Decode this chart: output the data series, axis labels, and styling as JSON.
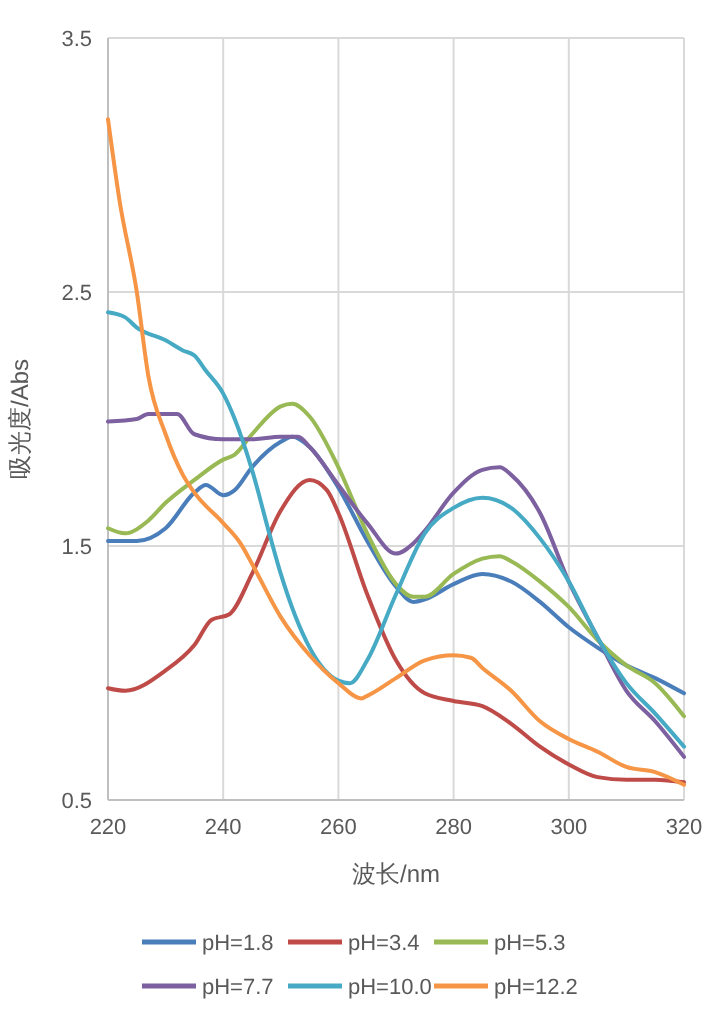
{
  "chart_data": {
    "type": "line",
    "xlabel": "波长/nm",
    "ylabel": "吸光度/Abs",
    "xlim": [
      220,
      320
    ],
    "xticks": [
      220,
      240,
      260,
      280,
      300,
      320
    ],
    "ylim": [
      0.5,
      3.5
    ],
    "yticks": [
      0.5,
      1.5,
      2.5,
      3.5
    ],
    "grid": true,
    "legend": "bottom",
    "marker": "none",
    "line_style": "solid",
    "series": [
      {
        "name": "pH=1.8",
        "color": "#4a7ebb",
        "x": [
          220,
          225,
          230,
          235,
          237,
          240,
          242,
          245,
          250,
          252,
          255,
          260,
          265,
          270,
          273,
          275,
          280,
          285,
          290,
          295,
          300,
          305,
          310,
          315,
          320
        ],
        "values": [
          1.52,
          1.52,
          1.57,
          1.71,
          1.74,
          1.7,
          1.72,
          1.81,
          1.91,
          1.93,
          1.89,
          1.73,
          1.52,
          1.34,
          1.28,
          1.29,
          1.35,
          1.39,
          1.36,
          1.28,
          1.18,
          1.1,
          1.03,
          0.98,
          0.92
        ]
      },
      {
        "name": "pH=3.4",
        "color": "#be4b48",
        "x": [
          220,
          223,
          230,
          235,
          238,
          241,
          245,
          250,
          255,
          258,
          260,
          265,
          270,
          275,
          280,
          285,
          290,
          295,
          300,
          305,
          310,
          315,
          320
        ],
        "values": [
          0.94,
          0.93,
          1.01,
          1.11,
          1.21,
          1.23,
          1.39,
          1.64,
          1.76,
          1.72,
          1.63,
          1.31,
          1.05,
          0.92,
          0.89,
          0.87,
          0.8,
          0.71,
          0.64,
          0.59,
          0.58,
          0.58,
          0.57
        ]
      },
      {
        "name": "pH=5.3",
        "color": "#98b954",
        "x": [
          220,
          223,
          227,
          230,
          235,
          240,
          242,
          245,
          250,
          252,
          255,
          260,
          265,
          270,
          273,
          275,
          280,
          285,
          288,
          290,
          295,
          300,
          305,
          310,
          315,
          320
        ],
        "values": [
          1.57,
          1.55,
          1.6,
          1.67,
          1.76,
          1.84,
          1.86,
          1.94,
          2.05,
          2.06,
          2.01,
          1.81,
          1.55,
          1.35,
          1.3,
          1.3,
          1.39,
          1.45,
          1.46,
          1.44,
          1.36,
          1.26,
          1.13,
          1.03,
          0.96,
          0.83
        ]
      },
      {
        "name": "pH=7.7",
        "color": "#7d60a0",
        "x": [
          220,
          225,
          227,
          232,
          235,
          240,
          245,
          250,
          253,
          255,
          260,
          265,
          270,
          273,
          275,
          280,
          285,
          288,
          290,
          295,
          300,
          305,
          310,
          315,
          320
        ],
        "values": [
          1.99,
          2.0,
          2.02,
          2.02,
          1.94,
          1.92,
          1.92,
          1.93,
          1.93,
          1.89,
          1.74,
          1.59,
          1.47,
          1.51,
          1.56,
          1.71,
          1.8,
          1.81,
          1.78,
          1.63,
          1.36,
          1.14,
          0.93,
          0.81,
          0.67
        ]
      },
      {
        "name": "pH=10.0",
        "color": "#46aac5",
        "x": [
          220,
          223,
          225,
          230,
          233,
          235,
          237,
          240,
          242,
          245,
          248,
          250,
          255,
          260,
          262,
          265,
          270,
          275,
          280,
          285,
          290,
          295,
          300,
          305,
          310,
          315,
          320
        ],
        "values": [
          2.42,
          2.4,
          2.36,
          2.31,
          2.27,
          2.25,
          2.19,
          2.1,
          2.0,
          1.8,
          1.55,
          1.39,
          1.1,
          0.97,
          0.96,
          1.05,
          1.31,
          1.55,
          1.65,
          1.69,
          1.65,
          1.53,
          1.36,
          1.14,
          0.96,
          0.84,
          0.71
        ]
      },
      {
        "name": "pH=12.2",
        "color": "#f69545",
        "x": [
          220,
          222,
          225,
          227,
          230,
          233,
          235,
          240,
          243,
          245,
          250,
          255,
          260,
          264,
          265,
          270,
          275,
          280,
          283,
          285,
          290,
          295,
          300,
          305,
          310,
          315,
          320
        ],
        "values": [
          3.18,
          2.86,
          2.5,
          2.17,
          1.94,
          1.78,
          1.71,
          1.59,
          1.51,
          1.43,
          1.22,
          1.07,
          0.96,
          0.9,
          0.91,
          0.98,
          1.05,
          1.07,
          1.06,
          1.02,
          0.93,
          0.81,
          0.74,
          0.69,
          0.63,
          0.61,
          0.56
        ]
      }
    ]
  }
}
